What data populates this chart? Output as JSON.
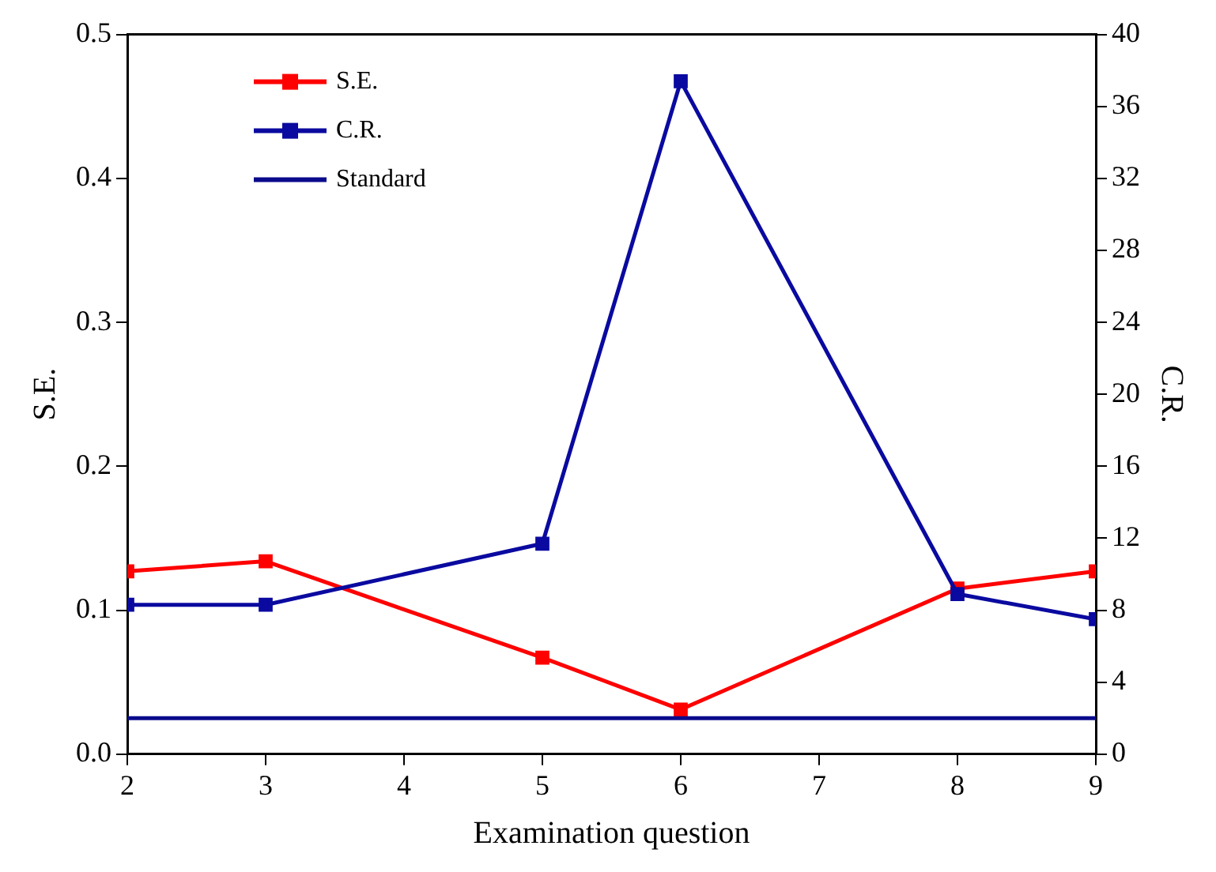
{
  "chart_data": {
    "type": "line",
    "xlabel": "Examination question",
    "ylabel": "S.E.",
    "y2label": "C.R.",
    "x": [
      2,
      3,
      5,
      6,
      8,
      9
    ],
    "series": [
      {
        "name": "S.E.",
        "color": "#ff0000",
        "values": [
          0.127,
          0.134,
          0.067,
          0.031,
          0.115,
          0.127
        ]
      },
      {
        "name": "C.R.",
        "color": "#0a0aa0",
        "axis": "y2",
        "values": [
          8.3,
          8.3,
          11.7,
          37.4,
          8.9,
          7.5
        ]
      },
      {
        "name": "Standard",
        "color": "#0a0a8c",
        "axis": "y2",
        "marker": "none",
        "values": [
          2,
          2,
          2,
          2,
          2,
          2
        ]
      }
    ],
    "xlim": [
      2,
      9
    ],
    "xticks": [
      2,
      3,
      4,
      5,
      6,
      7,
      8,
      9
    ],
    "ylim": [
      0,
      0.5
    ],
    "yticks": [
      {
        "value": 0,
        "label": "0.0"
      },
      0.1,
      0.2,
      0.3,
      0.4,
      0.5
    ],
    "y2lim": [
      0,
      40
    ],
    "y2ticks": [
      0,
      4,
      8,
      12,
      16,
      20,
      24,
      28,
      32,
      36,
      40
    ],
    "marker": "square",
    "line_style": "solid",
    "grid": false,
    "legend": "top left"
  }
}
